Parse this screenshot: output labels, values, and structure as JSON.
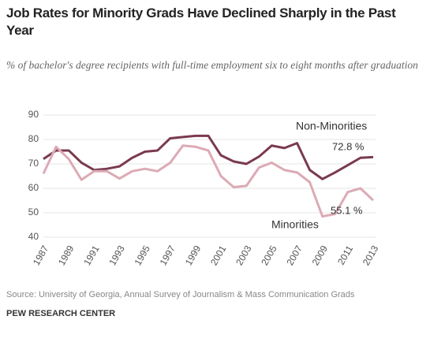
{
  "chart_data": {
    "type": "line",
    "title": "Job Rates for Minority Grads Have Declined Sharply in the Past Year",
    "subtitle": "% of bachelor's degree recipients with full-time employment six to eight months after graduation",
    "source": "Source: University of Georgia, Annual Survey of Journalism & Mass Communication Grads",
    "credit": "PEW RESEARCH CENTER",
    "x": [
      1987,
      1988,
      1989,
      1990,
      1991,
      1992,
      1993,
      1994,
      1995,
      1996,
      1997,
      1998,
      1999,
      2000,
      2001,
      2002,
      2003,
      2004,
      2005,
      2006,
      2007,
      2008,
      2009,
      2010,
      2011,
      2012,
      2013
    ],
    "xlim": [
      1987,
      2013
    ],
    "xticks": [
      1987,
      1989,
      1991,
      1993,
      1995,
      1997,
      1999,
      2001,
      2003,
      2005,
      2007,
      2009,
      2011,
      2013
    ],
    "ylim": [
      40,
      90
    ],
    "yticks": [
      40,
      50,
      60,
      70,
      80,
      90
    ],
    "grid": true,
    "series": [
      {
        "name": "Non-Minorities",
        "color": "#7a3a4e",
        "values": [
          72,
          75.5,
          75.5,
          70.5,
          67.5,
          68,
          69,
          72.5,
          75,
          75.5,
          80.5,
          81,
          81.5,
          81.5,
          73.5,
          71,
          70,
          73,
          77.5,
          76.5,
          78.5,
          67.5,
          63.8,
          66.5,
          69.5,
          72.5,
          72.8
        ],
        "value_labels": [
          null,
          null,
          null,
          null,
          null,
          null,
          null,
          null,
          null,
          null,
          null,
          null,
          null,
          null,
          null,
          null,
          null,
          null,
          null,
          null,
          null,
          null,
          null,
          null,
          null,
          null,
          "72.8 %"
        ]
      },
      {
        "name": "Minorities",
        "color": "#dcaab5",
        "values": [
          66,
          77,
          72,
          63.5,
          67,
          67,
          64,
          67,
          68,
          67,
          70.5,
          77.5,
          77,
          75.5,
          65,
          60.5,
          61,
          68.5,
          70.5,
          67.5,
          66.5,
          62.5,
          48.5,
          49.5,
          58.5,
          60,
          55.1
        ],
        "value_labels": [
          null,
          null,
          null,
          null,
          null,
          null,
          null,
          null,
          null,
          null,
          null,
          null,
          null,
          null,
          null,
          null,
          null,
          null,
          null,
          null,
          null,
          null,
          null,
          null,
          null,
          null,
          "55.1 %"
        ]
      }
    ]
  }
}
